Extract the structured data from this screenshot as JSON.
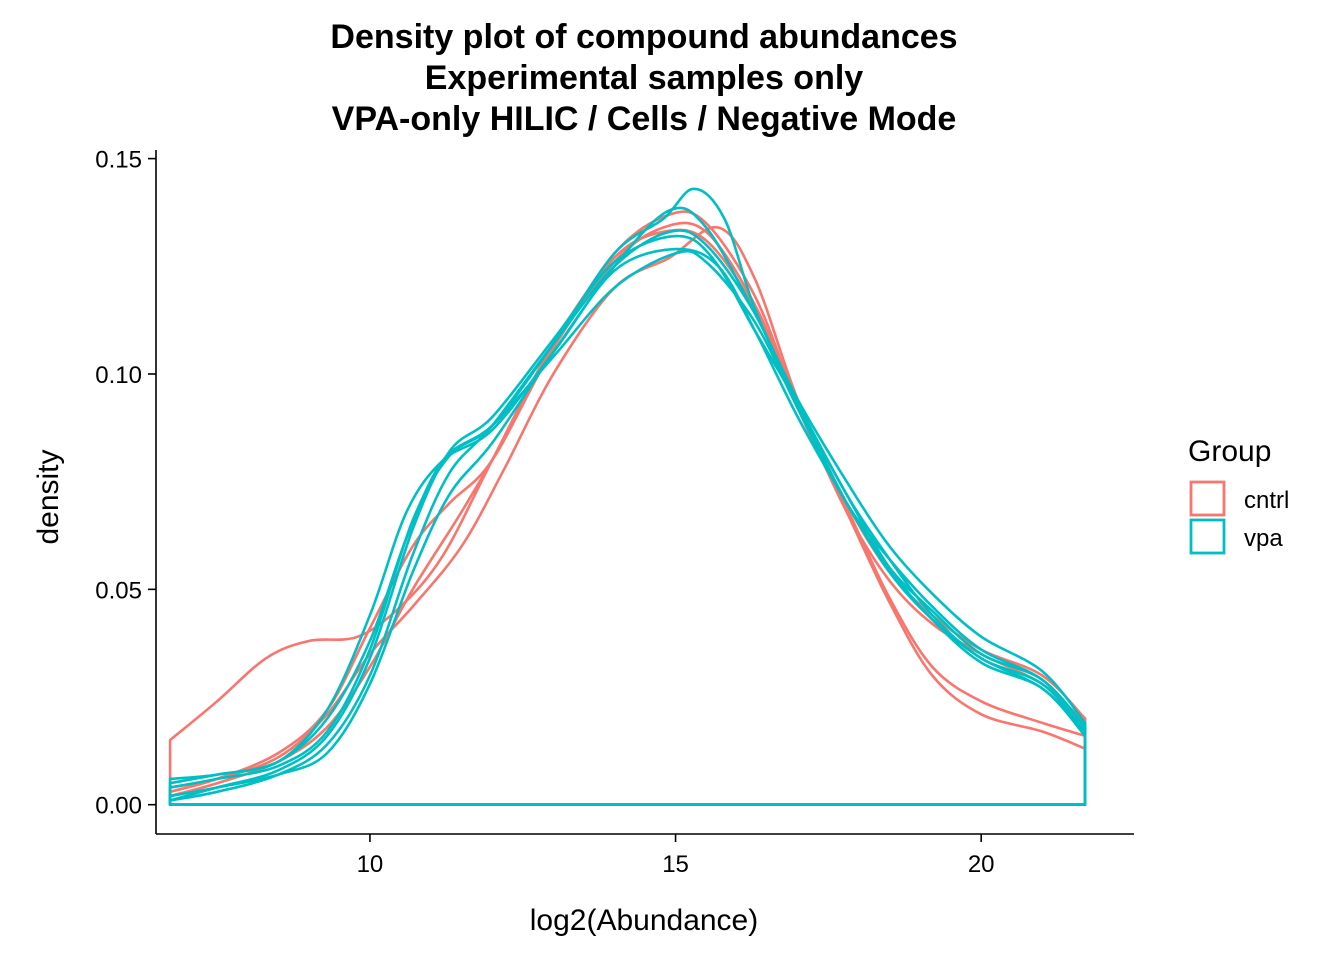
{
  "chart_data": {
    "type": "line",
    "subtype": "density",
    "title_lines": [
      "Density plot of compound abundances",
      "Experimental samples only",
      "VPA-only HILIC / Cells / Negative Mode"
    ],
    "xlabel": "log2(Abundance)",
    "ylabel": "density",
    "xlim": [
      6.5,
      22.5
    ],
    "ylim": [
      -0.0068,
      0.152
    ],
    "xticks": [
      10,
      15,
      20
    ],
    "xtick_labels": [
      "10",
      "15",
      "20"
    ],
    "yticks": [
      0.0,
      0.05,
      0.1,
      0.15
    ],
    "ytick_labels": [
      "0.00",
      "0.05",
      "0.10",
      "0.15"
    ],
    "grid": false,
    "legend": {
      "title": "Group",
      "placement": "right",
      "entries": [
        {
          "label": "cntrl",
          "color": "#F8766D"
        },
        {
          "label": "vpa",
          "color": "#00BFC4"
        }
      ]
    },
    "series": [
      {
        "group": "cntrl",
        "color": "#F8766D",
        "points": [
          [
            6.73,
            0.015
          ],
          [
            7.5,
            0.024
          ],
          [
            8.3,
            0.034
          ],
          [
            9.0,
            0.038
          ],
          [
            9.8,
            0.039
          ],
          [
            10.5,
            0.046
          ],
          [
            11.2,
            0.058
          ],
          [
            12.0,
            0.08
          ],
          [
            13.0,
            0.107
          ],
          [
            14.0,
            0.127
          ],
          [
            14.8,
            0.133
          ],
          [
            15.5,
            0.131
          ],
          [
            16.3,
            0.115
          ],
          [
            17.0,
            0.092
          ],
          [
            17.8,
            0.068
          ],
          [
            18.5,
            0.047
          ],
          [
            19.2,
            0.03
          ],
          [
            20.0,
            0.021
          ],
          [
            21.0,
            0.017
          ],
          [
            21.7,
            0.013
          ]
        ]
      },
      {
        "group": "cntrl",
        "color": "#F8766D",
        "points": [
          [
            6.73,
            0.003
          ],
          [
            7.5,
            0.006
          ],
          [
            8.5,
            0.012
          ],
          [
            9.3,
            0.022
          ],
          [
            10.0,
            0.041
          ],
          [
            10.7,
            0.06
          ],
          [
            11.3,
            0.07
          ],
          [
            12.0,
            0.08
          ],
          [
            13.0,
            0.106
          ],
          [
            14.0,
            0.126
          ],
          [
            14.8,
            0.134
          ],
          [
            15.5,
            0.133
          ],
          [
            16.3,
            0.116
          ],
          [
            17.0,
            0.093
          ],
          [
            17.8,
            0.069
          ],
          [
            18.5,
            0.048
          ],
          [
            19.2,
            0.032
          ],
          [
            20.0,
            0.024
          ],
          [
            21.0,
            0.019
          ],
          [
            21.7,
            0.016
          ]
        ]
      },
      {
        "group": "cntrl",
        "color": "#F8766D",
        "points": [
          [
            6.73,
            0.002
          ],
          [
            7.5,
            0.005
          ],
          [
            8.5,
            0.01
          ],
          [
            9.3,
            0.018
          ],
          [
            10.0,
            0.032
          ],
          [
            10.7,
            0.05
          ],
          [
            11.5,
            0.068
          ],
          [
            12.2,
            0.085
          ],
          [
            13.0,
            0.106
          ],
          [
            14.0,
            0.128
          ],
          [
            14.9,
            0.137
          ],
          [
            15.5,
            0.135
          ],
          [
            16.3,
            0.118
          ],
          [
            17.0,
            0.093
          ],
          [
            17.8,
            0.068
          ],
          [
            18.5,
            0.052
          ],
          [
            19.2,
            0.042
          ],
          [
            20.0,
            0.035
          ],
          [
            21.0,
            0.028
          ],
          [
            21.7,
            0.019
          ]
        ]
      },
      {
        "group": "cntrl",
        "color": "#F8766D",
        "points": [
          [
            6.73,
            0.004
          ],
          [
            7.5,
            0.006
          ],
          [
            8.5,
            0.011
          ],
          [
            9.3,
            0.021
          ],
          [
            10.0,
            0.035
          ],
          [
            10.7,
            0.046
          ],
          [
            11.5,
            0.06
          ],
          [
            12.2,
            0.078
          ],
          [
            13.0,
            0.1
          ],
          [
            14.0,
            0.12
          ],
          [
            14.9,
            0.127
          ],
          [
            15.7,
            0.134
          ],
          [
            16.3,
            0.122
          ],
          [
            17.0,
            0.094
          ],
          [
            17.8,
            0.07
          ],
          [
            18.5,
            0.054
          ],
          [
            19.2,
            0.044
          ],
          [
            20.0,
            0.036
          ],
          [
            21.0,
            0.03
          ],
          [
            21.7,
            0.02
          ]
        ]
      },
      {
        "group": "vpa",
        "color": "#00BFC4",
        "points": [
          [
            6.73,
            0.006
          ],
          [
            7.5,
            0.007
          ],
          [
            8.5,
            0.01
          ],
          [
            9.3,
            0.02
          ],
          [
            10.0,
            0.038
          ],
          [
            10.6,
            0.062
          ],
          [
            11.2,
            0.08
          ],
          [
            12.0,
            0.088
          ],
          [
            13.0,
            0.104
          ],
          [
            14.0,
            0.12
          ],
          [
            15.0,
            0.128
          ],
          [
            15.5,
            0.126
          ],
          [
            16.3,
            0.112
          ],
          [
            17.0,
            0.092
          ],
          [
            17.8,
            0.07
          ],
          [
            18.5,
            0.057
          ],
          [
            19.2,
            0.046
          ],
          [
            20.0,
            0.036
          ],
          [
            21.0,
            0.029
          ],
          [
            21.7,
            0.018
          ]
        ]
      },
      {
        "group": "vpa",
        "color": "#00BFC4",
        "points": [
          [
            6.73,
            0.001
          ],
          [
            7.5,
            0.004
          ],
          [
            8.5,
            0.008
          ],
          [
            9.3,
            0.016
          ],
          [
            10.0,
            0.034
          ],
          [
            10.7,
            0.064
          ],
          [
            11.3,
            0.082
          ],
          [
            12.0,
            0.09
          ],
          [
            13.0,
            0.108
          ],
          [
            14.0,
            0.126
          ],
          [
            15.0,
            0.132
          ],
          [
            15.6,
            0.127
          ],
          [
            16.3,
            0.11
          ],
          [
            17.0,
            0.093
          ],
          [
            17.8,
            0.072
          ],
          [
            18.5,
            0.057
          ],
          [
            19.2,
            0.044
          ],
          [
            20.0,
            0.034
          ],
          [
            21.0,
            0.028
          ],
          [
            21.7,
            0.017
          ]
        ]
      },
      {
        "group": "vpa",
        "color": "#00BFC4",
        "points": [
          [
            6.73,
            0.002
          ],
          [
            7.5,
            0.004
          ],
          [
            8.5,
            0.007
          ],
          [
            9.3,
            0.012
          ],
          [
            10.0,
            0.028
          ],
          [
            10.7,
            0.054
          ],
          [
            11.3,
            0.072
          ],
          [
            12.0,
            0.084
          ],
          [
            13.0,
            0.105
          ],
          [
            14.0,
            0.125
          ],
          [
            14.9,
            0.138
          ],
          [
            15.5,
            0.134
          ],
          [
            16.3,
            0.114
          ],
          [
            17.0,
            0.094
          ],
          [
            17.8,
            0.075
          ],
          [
            18.5,
            0.06
          ],
          [
            19.2,
            0.049
          ],
          [
            20.0,
            0.039
          ],
          [
            21.0,
            0.031
          ],
          [
            21.7,
            0.019
          ]
        ]
      },
      {
        "group": "vpa",
        "color": "#00BFC4",
        "points": [
          [
            6.73,
            0.005
          ],
          [
            7.5,
            0.007
          ],
          [
            8.5,
            0.01
          ],
          [
            9.3,
            0.022
          ],
          [
            10.0,
            0.044
          ],
          [
            10.6,
            0.068
          ],
          [
            11.2,
            0.08
          ],
          [
            12.0,
            0.087
          ],
          [
            13.0,
            0.105
          ],
          [
            14.0,
            0.124
          ],
          [
            15.0,
            0.129
          ],
          [
            15.7,
            0.125
          ],
          [
            16.3,
            0.11
          ],
          [
            17.0,
            0.09
          ],
          [
            17.8,
            0.07
          ],
          [
            18.5,
            0.054
          ],
          [
            19.2,
            0.043
          ],
          [
            20.0,
            0.034
          ],
          [
            21.0,
            0.027
          ],
          [
            21.7,
            0.017
          ]
        ]
      },
      {
        "group": "vpa",
        "color": "#00BFC4",
        "points": [
          [
            6.73,
            0.001
          ],
          [
            7.5,
            0.003
          ],
          [
            8.5,
            0.007
          ],
          [
            9.3,
            0.014
          ],
          [
            10.0,
            0.03
          ],
          [
            10.7,
            0.058
          ],
          [
            11.3,
            0.077
          ],
          [
            12.0,
            0.088
          ],
          [
            13.0,
            0.107
          ],
          [
            14.0,
            0.125
          ],
          [
            14.9,
            0.133
          ],
          [
            15.5,
            0.13
          ],
          [
            16.3,
            0.114
          ],
          [
            17.0,
            0.093
          ],
          [
            17.8,
            0.072
          ],
          [
            18.5,
            0.055
          ],
          [
            19.2,
            0.043
          ],
          [
            20.0,
            0.033
          ],
          [
            21.0,
            0.027
          ],
          [
            21.7,
            0.016
          ]
        ]
      },
      {
        "group": "vpa",
        "color": "#00BFC4",
        "points": [
          [
            6.73,
            0.004
          ],
          [
            7.5,
            0.006
          ],
          [
            8.5,
            0.009
          ],
          [
            9.3,
            0.017
          ],
          [
            10.0,
            0.036
          ],
          [
            10.7,
            0.066
          ],
          [
            11.3,
            0.081
          ],
          [
            12.0,
            0.088
          ],
          [
            13.0,
            0.107
          ],
          [
            14.0,
            0.128
          ],
          [
            14.8,
            0.136
          ],
          [
            15.3,
            0.143
          ],
          [
            15.8,
            0.136
          ],
          [
            16.3,
            0.115
          ],
          [
            17.0,
            0.093
          ],
          [
            17.8,
            0.07
          ],
          [
            18.5,
            0.055
          ],
          [
            19.2,
            0.045
          ],
          [
            20.0,
            0.035
          ],
          [
            21.0,
            0.029
          ],
          [
            21.7,
            0.018
          ]
        ]
      }
    ]
  }
}
